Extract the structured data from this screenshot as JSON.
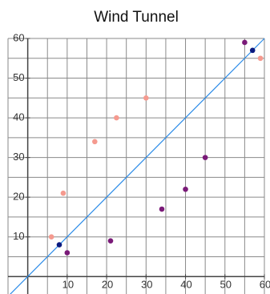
{
  "chart_data": {
    "type": "scatter",
    "title": "Wind Tunnel",
    "xlim": [
      -5,
      60
    ],
    "ylim": [
      -5,
      60
    ],
    "xticks": [
      10,
      20,
      30,
      40,
      50,
      60
    ],
    "yticks": [
      10,
      20,
      30,
      40,
      50,
      60
    ],
    "minor_xticks": [
      -5,
      0,
      5,
      10,
      15,
      20,
      25,
      30,
      35,
      40,
      45,
      50,
      55,
      60
    ],
    "minor_yticks": [
      -5,
      0,
      5,
      10,
      15,
      20,
      25,
      30,
      35,
      40,
      45,
      50,
      55,
      60
    ],
    "grid": true,
    "series": [
      {
        "color": "#f59a8f",
        "x": [
          6,
          9,
          17,
          22.5,
          30,
          59
        ],
        "values": [
          10,
          21,
          34,
          40,
          45,
          55
        ]
      },
      {
        "color": "#7a1a78",
        "x": [
          10,
          21,
          34,
          40,
          45,
          55
        ],
        "values": [
          6,
          9,
          17,
          22,
          30,
          59
        ]
      },
      {
        "color": "#0a1a80",
        "x": [
          8,
          57
        ],
        "values": [
          8,
          57
        ]
      }
    ]
  }
}
